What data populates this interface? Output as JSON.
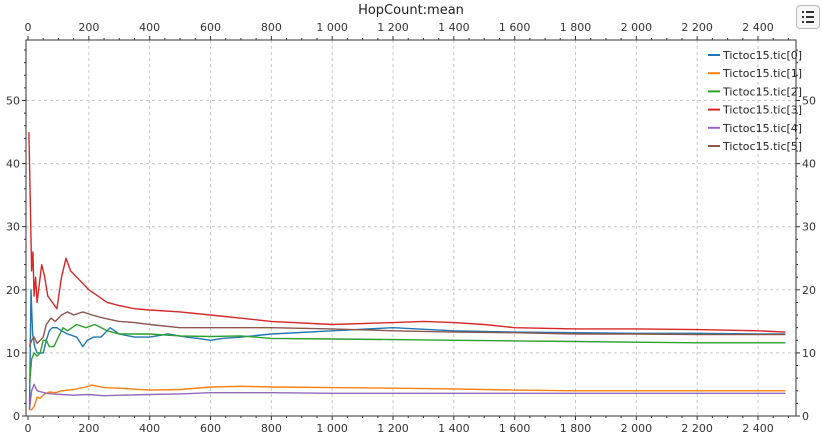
{
  "chart_data": {
    "type": "line",
    "title": "HopCount:mean",
    "xlabel": "",
    "ylabel": "",
    "xlim": [
      0,
      2500
    ],
    "ylim": [
      0,
      60
    ],
    "x_ticks": [
      0,
      200,
      400,
      600,
      800,
      1000,
      1200,
      1400,
      1600,
      1800,
      2000,
      2200,
      2400
    ],
    "x_tick_labels": [
      "0",
      "200",
      "400",
      "600",
      "800",
      "1 000",
      "1 200",
      "1 400",
      "1 600",
      "1 800",
      "2 000",
      "2 200",
      "2 400"
    ],
    "y_ticks": [
      0,
      10,
      20,
      30,
      40,
      50
    ],
    "y_tick_labels": [
      "0",
      "10",
      "20",
      "30",
      "40",
      "50"
    ],
    "grid": true,
    "legend_position": "top-right",
    "series": [
      {
        "name": "Tictoc15.tic[0]",
        "color": "#1f77b4",
        "points": [
          [
            5,
            1
          ],
          [
            10,
            20
          ],
          [
            15,
            13
          ],
          [
            22,
            11
          ],
          [
            30,
            10
          ],
          [
            40,
            10
          ],
          [
            50,
            10
          ],
          [
            60,
            12
          ],
          [
            70,
            13.5
          ],
          [
            80,
            14
          ],
          [
            95,
            14
          ],
          [
            110,
            13.5
          ],
          [
            130,
            13
          ],
          [
            160,
            12.5
          ],
          [
            180,
            11
          ],
          [
            195,
            12
          ],
          [
            215,
            12.5
          ],
          [
            240,
            12.5
          ],
          [
            270,
            14
          ],
          [
            300,
            13
          ],
          [
            350,
            12.5
          ],
          [
            400,
            12.5
          ],
          [
            460,
            13
          ],
          [
            520,
            12.5
          ],
          [
            560,
            12.3
          ],
          [
            600,
            12
          ],
          [
            640,
            12.3
          ],
          [
            700,
            12.5
          ],
          [
            800,
            13
          ],
          [
            1000,
            13.5
          ],
          [
            1200,
            14
          ],
          [
            1400,
            13.5
          ],
          [
            1600,
            13.3
          ],
          [
            1800,
            13.2
          ],
          [
            2000,
            13.1
          ],
          [
            2200,
            13.1
          ],
          [
            2400,
            13
          ],
          [
            2490,
            13
          ]
        ]
      },
      {
        "name": "Tictoc15.tic[1]",
        "color": "#ff7f0e",
        "points": [
          [
            5,
            1
          ],
          [
            12,
            1
          ],
          [
            20,
            1.5
          ],
          [
            30,
            3
          ],
          [
            40,
            2.8
          ],
          [
            55,
            3.5
          ],
          [
            70,
            3.8
          ],
          [
            90,
            3.7
          ],
          [
            110,
            4
          ],
          [
            150,
            4.2
          ],
          [
            190,
            4.6
          ],
          [
            210,
            4.9
          ],
          [
            250,
            4.5
          ],
          [
            300,
            4.4
          ],
          [
            400,
            4.1
          ],
          [
            500,
            4.2
          ],
          [
            600,
            4.6
          ],
          [
            700,
            4.7
          ],
          [
            800,
            4.6
          ],
          [
            1000,
            4.5
          ],
          [
            1200,
            4.4
          ],
          [
            1400,
            4.3
          ],
          [
            1600,
            4.1
          ],
          [
            1800,
            4
          ],
          [
            2000,
            4
          ],
          [
            2200,
            4
          ],
          [
            2400,
            4
          ],
          [
            2490,
            4
          ]
        ]
      },
      {
        "name": "Tictoc15.tic[2]",
        "color": "#2ca02c",
        "points": [
          [
            5,
            5
          ],
          [
            12,
            9
          ],
          [
            20,
            10
          ],
          [
            30,
            9.5
          ],
          [
            40,
            10
          ],
          [
            50,
            12
          ],
          [
            60,
            12
          ],
          [
            70,
            11
          ],
          [
            85,
            11
          ],
          [
            100,
            12.5
          ],
          [
            115,
            14
          ],
          [
            130,
            13.5
          ],
          [
            160,
            14.5
          ],
          [
            190,
            14
          ],
          [
            220,
            14.5
          ],
          [
            260,
            13.5
          ],
          [
            300,
            13
          ],
          [
            400,
            13
          ],
          [
            500,
            12.7
          ],
          [
            600,
            12.6
          ],
          [
            700,
            12.7
          ],
          [
            800,
            12.3
          ],
          [
            1000,
            12.2
          ],
          [
            1200,
            12.1
          ],
          [
            1400,
            12
          ],
          [
            1600,
            11.9
          ],
          [
            1800,
            11.8
          ],
          [
            2000,
            11.7
          ],
          [
            2200,
            11.6
          ],
          [
            2400,
            11.6
          ],
          [
            2490,
            11.6
          ]
        ]
      },
      {
        "name": "Tictoc15.tic[3]",
        "color": "#d62728",
        "points": [
          [
            3,
            45
          ],
          [
            8,
            33
          ],
          [
            12,
            23
          ],
          [
            16,
            26
          ],
          [
            20,
            19
          ],
          [
            25,
            22
          ],
          [
            30,
            18
          ],
          [
            35,
            20
          ],
          [
            45,
            24
          ],
          [
            55,
            22
          ],
          [
            65,
            19
          ],
          [
            80,
            18
          ],
          [
            95,
            17
          ],
          [
            110,
            22
          ],
          [
            125,
            25
          ],
          [
            140,
            23
          ],
          [
            160,
            22
          ],
          [
            180,
            21
          ],
          [
            200,
            20
          ],
          [
            230,
            19
          ],
          [
            260,
            18
          ],
          [
            300,
            17.5
          ],
          [
            350,
            17
          ],
          [
            400,
            16.8
          ],
          [
            500,
            16.5
          ],
          [
            600,
            16
          ],
          [
            700,
            15.5
          ],
          [
            800,
            15
          ],
          [
            1000,
            14.5
          ],
          [
            1200,
            14.8
          ],
          [
            1300,
            15
          ],
          [
            1400,
            14.8
          ],
          [
            1500,
            14.5
          ],
          [
            1600,
            14
          ],
          [
            1800,
            13.8
          ],
          [
            2000,
            13.8
          ],
          [
            2200,
            13.7
          ],
          [
            2400,
            13.5
          ],
          [
            2490,
            13.3
          ]
        ]
      },
      {
        "name": "Tictoc15.tic[4]",
        "color": "#9467bd",
        "points": [
          [
            5,
            1
          ],
          [
            12,
            4
          ],
          [
            20,
            5
          ],
          [
            30,
            4
          ],
          [
            45,
            3.8
          ],
          [
            60,
            3.6
          ],
          [
            80,
            3.5
          ],
          [
            110,
            3.4
          ],
          [
            150,
            3.3
          ],
          [
            200,
            3.4
          ],
          [
            250,
            3.2
          ],
          [
            300,
            3.3
          ],
          [
            400,
            3.4
          ],
          [
            500,
            3.5
          ],
          [
            600,
            3.7
          ],
          [
            800,
            3.7
          ],
          [
            1000,
            3.6
          ],
          [
            1200,
            3.6
          ],
          [
            1400,
            3.6
          ],
          [
            1600,
            3.6
          ],
          [
            1800,
            3.6
          ],
          [
            2000,
            3.6
          ],
          [
            2200,
            3.6
          ],
          [
            2400,
            3.6
          ],
          [
            2490,
            3.6
          ]
        ]
      },
      {
        "name": "Tictoc15.tic[5]",
        "color": "#8c564b",
        "points": [
          [
            5,
            11
          ],
          [
            12,
            12
          ],
          [
            20,
            12.5
          ],
          [
            30,
            11.5
          ],
          [
            40,
            12
          ],
          [
            50,
            12.5
          ],
          [
            60,
            14.5
          ],
          [
            75,
            15.5
          ],
          [
            90,
            15
          ],
          [
            110,
            16
          ],
          [
            130,
            16.5
          ],
          [
            150,
            16
          ],
          [
            180,
            16.5
          ],
          [
            210,
            16
          ],
          [
            250,
            15.5
          ],
          [
            300,
            15
          ],
          [
            350,
            14.8
          ],
          [
            400,
            14.5
          ],
          [
            500,
            14
          ],
          [
            600,
            14
          ],
          [
            700,
            14
          ],
          [
            800,
            14
          ],
          [
            1000,
            13.8
          ],
          [
            1200,
            13.5
          ],
          [
            1400,
            13.3
          ],
          [
            1600,
            13.2
          ],
          [
            1800,
            13
          ],
          [
            2000,
            13
          ],
          [
            2200,
            12.9
          ],
          [
            2400,
            12.9
          ],
          [
            2490,
            12.9
          ]
        ]
      }
    ]
  },
  "toolbar": {
    "options_button_icon": "list-icon"
  }
}
